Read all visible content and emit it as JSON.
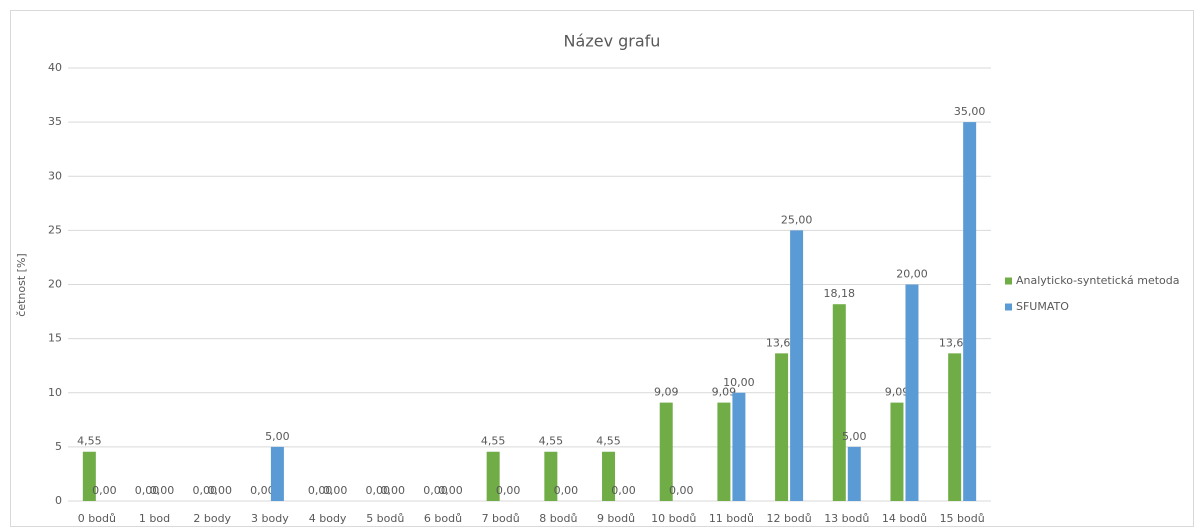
{
  "chart_data": {
    "type": "bar",
    "title": "Název grafu",
    "y_label": "četnost [%]",
    "categories": [
      "0 bodů",
      "1 bod",
      "2 body",
      "3 body",
      "4 body",
      "5 bodů",
      "6 bodů",
      "7 bodů",
      "8 bodů",
      "9 bodů",
      "10 bodů",
      "11 bodů",
      "12 bodů",
      "13 bodů",
      "14 bodů",
      "15 bodů"
    ],
    "series": [
      {
        "name": "Analyticko-syntetická metoda",
        "color": "#70ad47",
        "values": [
          4.55,
          0,
          0,
          0,
          0,
          0,
          0,
          4.55,
          4.55,
          4.55,
          9.09,
          9.09,
          13.64,
          18.18,
          9.09,
          13.64
        ],
        "value_labels": [
          "4,55",
          "0,00",
          "0,00",
          "0,00",
          "0,00",
          "0,00",
          "0,00",
          "4,55",
          "4,55",
          "4,55",
          "9,09",
          "9,09",
          "13,64",
          "18,18",
          "9,09",
          "13,64"
        ]
      },
      {
        "name": "SFUMATO",
        "color": "#5b9bd5",
        "values": [
          0,
          0,
          0,
          5,
          0,
          0,
          0,
          0,
          0,
          0,
          0,
          10,
          25,
          5,
          20,
          35
        ],
        "value_labels": [
          "0,00",
          "0,00",
          "0,00",
          "5,00",
          "0,00",
          "0,00",
          "0,00",
          "0,00",
          "0,00",
          "0,00",
          "0,00",
          "10,00",
          "25,00",
          "5,00",
          "20,00",
          "35,00"
        ]
      }
    ],
    "ylim": [
      0,
      40
    ],
    "yticks": [
      0,
      5,
      10,
      15,
      20,
      25,
      30,
      35,
      40
    ],
    "grid": true,
    "legend": "right"
  }
}
